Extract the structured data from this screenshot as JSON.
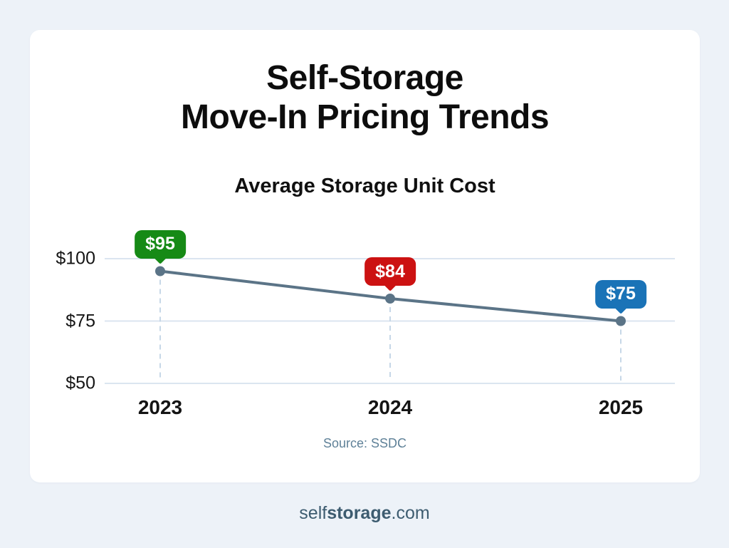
{
  "page": {
    "background_color": "#edf2f8",
    "card_color": "#ffffff"
  },
  "header": {
    "title_line1": "Self-Storage",
    "title_line2": "Move-In Pricing Trends"
  },
  "chart_data": {
    "type": "line",
    "title": "Average Storage Unit Cost",
    "categories": [
      "2023",
      "2024",
      "2025"
    ],
    "series": [
      {
        "name": "Average Storage Unit Cost",
        "values": [
          95,
          84,
          75
        ]
      }
    ],
    "point_labels": [
      "$95",
      "$84",
      "$75"
    ],
    "point_label_colors": [
      "#168a16",
      "#cc1212",
      "#1a73b7"
    ],
    "yticks": [
      {
        "value": 100,
        "label": "$100"
      },
      {
        "value": 75,
        "label": "$75"
      },
      {
        "value": 50,
        "label": "$50"
      }
    ],
    "ylim": [
      50,
      100
    ],
    "xlabel": "",
    "ylabel": "",
    "grid": true,
    "legend": false,
    "line_color": "#5b7487",
    "point_color": "#5b7487",
    "grid_color": "#dbe5f0",
    "dash_color": "#c6d7e7",
    "source": "Source: SSDC"
  },
  "footer": {
    "brand_prefix": "self",
    "brand_bold": "storage",
    "brand_suffix": ".com"
  }
}
